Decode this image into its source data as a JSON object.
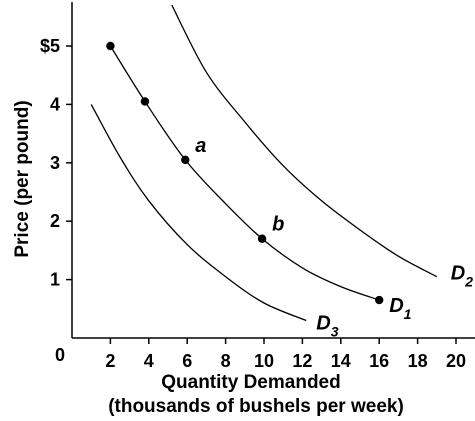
{
  "chart_data": {
    "type": "line",
    "xlabel": "Quantity Demanded",
    "xlabel_sub": "(thousands of bushels per week)",
    "ylabel": "Price (per pound)",
    "xlim": [
      0,
      21
    ],
    "ylim": [
      0,
      5.7
    ],
    "origin_label": "0",
    "x_ticks": [
      {
        "value": 2,
        "label": "2"
      },
      {
        "value": 4,
        "label": "4"
      },
      {
        "value": 6,
        "label": "6"
      },
      {
        "value": 8,
        "label": "8"
      },
      {
        "value": 10,
        "label": "10"
      },
      {
        "value": 12,
        "label": "12"
      },
      {
        "value": 14,
        "label": "14"
      },
      {
        "value": 16,
        "label": "16"
      },
      {
        "value": 18,
        "label": "18"
      },
      {
        "value": 20,
        "label": "20"
      }
    ],
    "y_ticks": [
      {
        "value": 1,
        "label": "1"
      },
      {
        "value": 2,
        "label": "2"
      },
      {
        "value": 3,
        "label": "3"
      },
      {
        "value": 4,
        "label": "4"
      },
      {
        "value": 5,
        "label": "$5"
      }
    ],
    "series": [
      {
        "name": "D2",
        "label_main": "D",
        "label_sub": "2",
        "x": [
          5.2,
          7.0,
          9.0,
          11.0,
          13.0,
          15.0,
          17.0,
          19.0
        ],
        "y": [
          5.7,
          4.55,
          3.7,
          2.95,
          2.35,
          1.85,
          1.4,
          1.05
        ]
      },
      {
        "name": "D1",
        "label_main": "D",
        "label_sub": "1",
        "x": [
          2.0,
          3.8,
          5.9,
          8.0,
          9.9,
          12.0,
          14.0,
          16.0
        ],
        "y": [
          5.0,
          4.05,
          3.05,
          2.3,
          1.7,
          1.2,
          0.88,
          0.65
        ]
      },
      {
        "name": "D3",
        "label_main": "D",
        "label_sub": "3",
        "x": [
          1.0,
          2.5,
          4.0,
          6.0,
          8.0,
          10.0,
          12.2
        ],
        "y": [
          4.0,
          3.1,
          2.35,
          1.6,
          1.05,
          0.6,
          0.3
        ]
      }
    ],
    "points": [
      {
        "x": 2.0,
        "y": 5.0,
        "label": ""
      },
      {
        "x": 3.8,
        "y": 4.05,
        "label": ""
      },
      {
        "x": 5.9,
        "y": 3.05,
        "label": "a"
      },
      {
        "x": 9.9,
        "y": 1.7,
        "label": "b"
      },
      {
        "x": 16.0,
        "y": 0.65,
        "label": ""
      }
    ]
  }
}
